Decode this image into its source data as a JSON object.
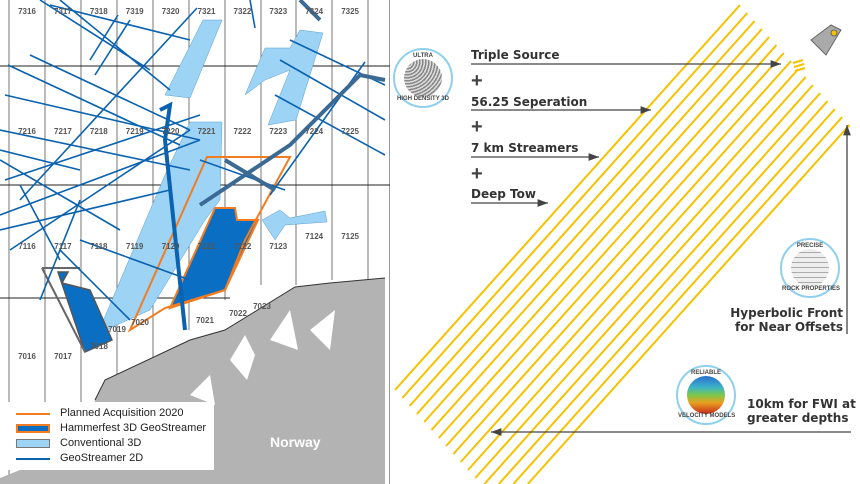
{
  "map": {
    "blocks": {
      "r73": [
        "7316",
        "7317",
        "7318",
        "7319",
        "7320",
        "7321",
        "7322",
        "7323",
        "7324",
        "7325"
      ],
      "r72": [
        "7216",
        "7217",
        "7218",
        "7219",
        "7220",
        "7221",
        "7222",
        "7223",
        "7224",
        "7225"
      ],
      "r71": [
        "7116",
        "7117",
        "7118",
        "7119",
        "7120",
        "7121",
        "7122",
        "7123",
        "7124",
        "7125"
      ],
      "r70": [
        "7016",
        "7017",
        "7018",
        "7019",
        "7020",
        "7021",
        "7022",
        "7023"
      ]
    },
    "country_label": "Norway",
    "legend": [
      {
        "label": "Planned Acquisition 2020",
        "color": "#f47c20"
      },
      {
        "label": "Hammerfest 3D GeoStreamer",
        "color": "#0a6fc2"
      },
      {
        "label": "Conventional 3D",
        "color": "#9dd3f5"
      },
      {
        "label": "GeoStreamer 2D",
        "color": "#0a62b0"
      }
    ]
  },
  "diagram": {
    "features": [
      "Triple Source",
      "56.25 Seperation",
      "7 km Streamers",
      "Deep Tow"
    ],
    "plus": "+",
    "hyperbolic": [
      "Hyperbolic Front",
      "for Near Offsets"
    ],
    "fwi": [
      "10km for FWI at",
      "greater depths"
    ],
    "badges": {
      "uhd": {
        "top": "ULTRA",
        "bottom": "HIGH DENSITY 3D"
      },
      "precise": {
        "top": "PRECISE",
        "bottom": "ROCK PROPERTIES"
      },
      "reliable": {
        "top": "RELIABLE",
        "bottom": "VELOCITY MODELS"
      }
    },
    "streamer_count": 16,
    "streamer_color": "#f5c200"
  }
}
